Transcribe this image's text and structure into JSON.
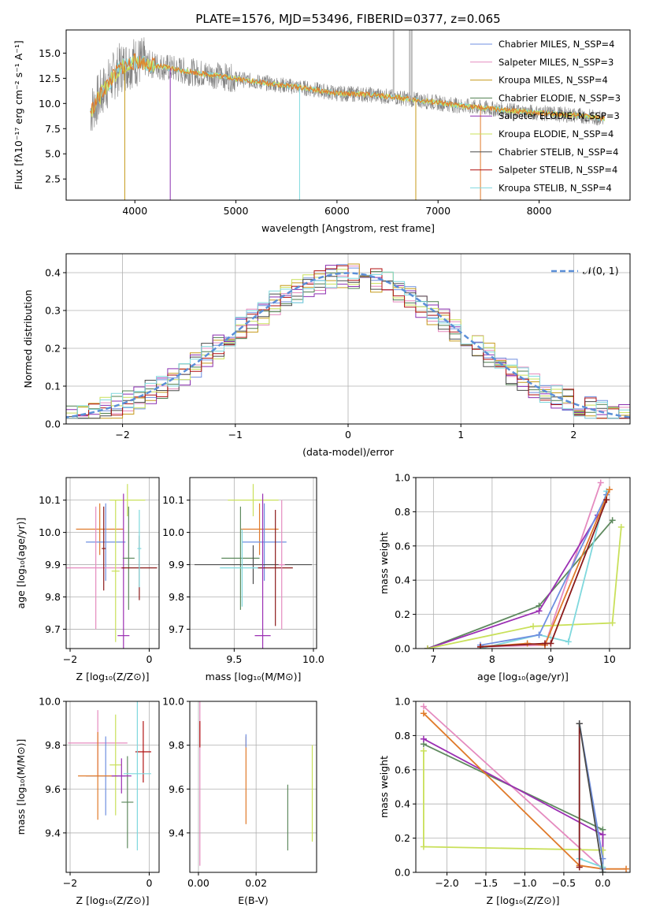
{
  "figure": {
    "title": "PLATE=1576, MJD=53496, FIBERID=0377, z=0.065"
  },
  "colors": {
    "series": [
      "#6f8fe0",
      "#e58bbf",
      "#c69a1b",
      "#4f7f4f",
      "#8a2fb0",
      "#c9e05a",
      "#4a4a4a",
      "#b01010",
      "#7fd8dd"
    ],
    "orange": "#e07a2a",
    "green": "#5f8a5f",
    "purple": "#9b2fb3",
    "pink": "#e58bbf",
    "teal": "#7fd8dd",
    "lime": "#c9e05a",
    "darkred": "#8b1a1a",
    "blue": "#6f8fe0",
    "grey": "#7f7f7f",
    "gauss": "#5b8fd8"
  },
  "chart_data": [
    {
      "type": "line",
      "xlabel": "wavelength [Angstrom, rest frame]",
      "ylabel": "Flux [fλ10⁻¹⁷ erg cm⁻² s⁻¹ A⁻¹]",
      "xlim": [
        3320,
        8900
      ],
      "ylim": [
        0.4,
        17.3
      ],
      "xticks": [
        "4000",
        "5000",
        "6000",
        "7000",
        "8000"
      ],
      "yticks": [
        "2.5",
        "5.0",
        "7.5",
        "10.0",
        "12.5",
        "15.0"
      ],
      "legend": [
        "Chabrier MILES, N_SSP=4",
        "Salpeter MILES, N_SSP=3",
        "Kroupa MILES, N_SSP=4",
        "Chabrier ELODIE, N_SSP=3",
        "Salpeter ELODIE, N_SSP=3",
        "Kroupa ELODIE, N_SSP=4",
        "Chabrier STELIB, N_SSP=4",
        "Salpeter STELIB, N_SSP=4",
        "Kroupa STELIB, N_SSP=4"
      ],
      "legend_position": "top-right",
      "continuum": {
        "x": [
          3560,
          3700,
          3850,
          4000,
          4200,
          4500,
          4800,
          5100,
          5400,
          5700,
          6000,
          6300,
          6600,
          6900,
          7200,
          7500,
          7800,
          8100,
          8400,
          8650
        ],
        "y": [
          9.2,
          11.5,
          13.5,
          14.2,
          13.8,
          13.2,
          12.8,
          12.3,
          11.9,
          11.5,
          11.0,
          10.9,
          10.6,
          10.2,
          9.8,
          9.5,
          9.2,
          9.0,
          8.8,
          8.5
        ]
      }
    },
    {
      "type": "line",
      "xlabel": "(data-model)/error",
      "ylabel": "Normed distribution",
      "xlim": [
        -2.5,
        2.5
      ],
      "ylim": [
        0,
        0.45
      ],
      "xticks": [
        "−2",
        "−1",
        "0",
        "1",
        "2"
      ],
      "yticks": [
        "0.0",
        "0.1",
        "0.2",
        "0.3",
        "0.4"
      ],
      "grid": true,
      "legend": [
        "𝒩(0, 1)"
      ],
      "legend_position": "top-right",
      "histogram_bin_width": 0.1,
      "gauss": {
        "mu": 0,
        "sigma": 1
      }
    },
    {
      "type": "scatter",
      "xlabel": "Z [log₁₀(Z/Z⊙)]",
      "ylabel": "age  [log₁₀(age/yr)]",
      "xlim": [
        -2.1,
        0.25
      ],
      "ylim": [
        9.64,
        10.17
      ],
      "xticks": [
        "−2",
        "0"
      ],
      "yticks": [
        "9.7",
        "9.8",
        "9.9",
        "10.0",
        "10.1"
      ],
      "crosses": [
        {
          "x": -1.25,
          "y": 10.01,
          "xerr": 0.6,
          "yerr": 0.08,
          "color": "#e07a2a"
        },
        {
          "x": -1.1,
          "y": 9.97,
          "xerr": 0.5,
          "yerr": 0.12,
          "color": "#6f8fe0"
        },
        {
          "x": -1.35,
          "y": 9.89,
          "xerr": 0.75,
          "yerr": 0.19,
          "color": "#e58bbf"
        },
        {
          "x": -0.85,
          "y": 9.88,
          "xerr": 0.1,
          "yerr": 0.22,
          "color": "#c9e05a"
        },
        {
          "x": -0.55,
          "y": 10.1,
          "xerr": 0.45,
          "yerr": 0.05,
          "color": "#c9e05a"
        },
        {
          "x": -0.65,
          "y": 9.68,
          "xerr": 0.15,
          "yerr": 0.44,
          "color": "#9b2fb3"
        },
        {
          "x": -0.52,
          "y": 9.92,
          "xerr": 0.15,
          "yerr": 0.16,
          "color": "#5f8a5f"
        },
        {
          "x": -0.25,
          "y": 9.89,
          "xerr": 0.45,
          "yerr": 0.1,
          "color": "#8b1a1a"
        },
        {
          "x": -0.25,
          "y": 9.95,
          "xerr": 0.05,
          "yerr": 0.12,
          "color": "#7fd8dd"
        },
        {
          "x": -1.15,
          "y": 9.95,
          "xerr": 0.05,
          "yerr": 0.13,
          "color": "#8b1a1a"
        }
      ]
    },
    {
      "type": "scatter",
      "xlabel": "mass [log₁₀(M/M⊙)]",
      "xlim": [
        9.22,
        10.02
      ],
      "ylim": [
        9.64,
        10.17
      ],
      "xticks": [
        "9.5",
        "10.0"
      ],
      "yticks": [
        "9.7",
        "9.8",
        "9.9",
        "10.0",
        "10.1"
      ],
      "crosses": [
        {
          "x": 9.62,
          "y": 10.1,
          "xerr": 0.16,
          "yerr": 0.05,
          "color": "#c9e05a"
        },
        {
          "x": 9.66,
          "y": 10.01,
          "xerr": 0.12,
          "yerr": 0.08,
          "color": "#e07a2a"
        },
        {
          "x": 9.69,
          "y": 9.97,
          "xerr": 0.14,
          "yerr": 0.12,
          "color": "#6f8fe0"
        },
        {
          "x": 9.54,
          "y": 9.92,
          "xerr": 0.12,
          "yerr": 0.16,
          "color": "#5f8a5f"
        },
        {
          "x": 9.62,
          "y": 9.9,
          "xerr": 0.37,
          "yerr": 0.06,
          "color": "#4a4a4a"
        },
        {
          "x": 9.55,
          "y": 9.89,
          "xerr": 0.14,
          "yerr": 0.12,
          "color": "#7fd8dd"
        },
        {
          "x": 9.76,
          "y": 9.89,
          "xerr": 0.11,
          "yerr": 0.18,
          "color": "#8b1a1a"
        },
        {
          "x": 9.68,
          "y": 9.68,
          "xerr": 0.05,
          "yerr": 0.44,
          "color": "#9b2fb3"
        },
        {
          "x": 9.8,
          "y": 9.9,
          "xerr": 0.02,
          "yerr": 0.2,
          "color": "#e58bbf"
        }
      ]
    },
    {
      "type": "line",
      "xlabel": "age  [log₁₀(age/yr)]",
      "ylabel": "mass weight",
      "xlim": [
        6.7,
        10.35
      ],
      "ylim": [
        0,
        1
      ],
      "xticks": [
        "7",
        "8",
        "9",
        "10"
      ],
      "yticks": [
        "0.0",
        "0.2",
        "0.4",
        "0.6",
        "0.8",
        "1.0"
      ],
      "grid": true,
      "series": [
        {
          "color": "#e58bbf",
          "x": [
            7.8,
            8.9,
            9.85
          ],
          "y": [
            0.01,
            0.02,
            0.97
          ]
        },
        {
          "color": "#5f8a5f",
          "x": [
            6.9,
            8.8,
            10.05
          ],
          "y": [
            0.0,
            0.25,
            0.75
          ]
        },
        {
          "color": "#9b2fb3",
          "x": [
            6.9,
            8.8,
            9.8
          ],
          "y": [
            0.0,
            0.22,
            0.78
          ]
        },
        {
          "color": "#c9e05a",
          "x": [
            6.9,
            8.7,
            10.05,
            10.2
          ],
          "y": [
            0.0,
            0.13,
            0.15,
            0.71
          ]
        },
        {
          "color": "#7fd8dd",
          "x": [
            7.8,
            8.8,
            9.3,
            9.95
          ],
          "y": [
            0.0,
            0.08,
            0.04,
            0.92
          ]
        },
        {
          "color": "#6f8fe0",
          "x": [
            7.8,
            8.8,
            9.95
          ],
          "y": [
            0.02,
            0.08,
            0.9
          ]
        },
        {
          "color": "#e07a2a",
          "x": [
            7.8,
            8.6,
            8.9,
            10.0
          ],
          "y": [
            0.01,
            0.03,
            0.02,
            0.93
          ]
        },
        {
          "color": "#8b1a1a",
          "x": [
            7.8,
            8.9,
            9.0,
            9.95
          ],
          "y": [
            0.01,
            0.03,
            0.03,
            0.87
          ]
        }
      ]
    },
    {
      "type": "scatter",
      "xlabel": "Z [log₁₀(Z/Z⊙)]",
      "ylabel": "mass [log₁₀(M/M⊙)]",
      "xlim": [
        -2.1,
        0.25
      ],
      "ylim": [
        9.22,
        10.0
      ],
      "xticks": [
        "−2",
        "0"
      ],
      "yticks": [
        "9.4",
        "9.6",
        "9.8",
        "10.0"
      ],
      "crosses": [
        {
          "x": -1.3,
          "y": 9.81,
          "xerr": 0.75,
          "yerr": 0.15,
          "color": "#e58bbf"
        },
        {
          "x": -1.1,
          "y": 9.66,
          "xerr": 0.5,
          "yerr": 0.18,
          "color": "#6f8fe0"
        },
        {
          "x": -1.3,
          "y": 9.66,
          "xerr": 0.5,
          "yerr": 0.2,
          "color": "#e07a2a"
        },
        {
          "x": -0.55,
          "y": 9.54,
          "xerr": 0.15,
          "yerr": 0.21,
          "color": "#5f8a5f"
        },
        {
          "x": -0.85,
          "y": 9.71,
          "xerr": 0.15,
          "yerr": 0.23,
          "color": "#c9e05a"
        },
        {
          "x": -0.15,
          "y": 9.77,
          "xerr": 0.2,
          "yerr": 0.14,
          "color": "#b01010"
        },
        {
          "x": -0.3,
          "y": 9.67,
          "xerr": 0.35,
          "yerr": 0.35,
          "color": "#7fd8dd"
        },
        {
          "x": -0.7,
          "y": 9.66,
          "xerr": 0.25,
          "yerr": 0.08,
          "color": "#9b2fb3"
        }
      ]
    },
    {
      "type": "scatter",
      "xlabel": "E(B-V)",
      "xlim": [
        -0.003,
        0.041
      ],
      "ylim": [
        9.22,
        10.0
      ],
      "xticks": [
        "0.00",
        "0.02"
      ],
      "yticks": [
        "9.4",
        "9.6",
        "9.8",
        "10.0"
      ],
      "crosses": [
        {
          "x": 0.0005,
          "y": 9.65,
          "xerr": 0.0,
          "yerr": 0.4,
          "color": "#e58bbf"
        },
        {
          "x": 0.0005,
          "y": 9.85,
          "xerr": 0.0,
          "yerr": 0.06,
          "color": "#b01010"
        },
        {
          "x": 0.0165,
          "y": 9.64,
          "xerr": 0.0,
          "yerr": 0.2,
          "color": "#e07a2a"
        },
        {
          "x": 0.0165,
          "y": 9.82,
          "xerr": 0.0,
          "yerr": 0.03,
          "color": "#6f8fe0"
        },
        {
          "x": 0.031,
          "y": 9.47,
          "xerr": 0.0,
          "yerr": 0.15,
          "color": "#5f8a5f"
        },
        {
          "x": 0.0395,
          "y": 9.58,
          "xerr": 0.0,
          "yerr": 0.22,
          "color": "#c9e05a"
        }
      ]
    },
    {
      "type": "line",
      "xlabel": "Z [log₁₀(Z/Z⊙)]",
      "ylabel": "mass weight",
      "xlim": [
        -2.4,
        0.35
      ],
      "ylim": [
        0,
        1
      ],
      "xticks": [
        "−2.0",
        "−1.5",
        "−1.0",
        "−0.5",
        "0.0"
      ],
      "yticks": [
        "0.0",
        "0.2",
        "0.4",
        "0.6",
        "0.8",
        "1.0"
      ],
      "grid": true,
      "series": [
        {
          "color": "#e58bbf",
          "x": [
            -2.3,
            0.0
          ],
          "y": [
            0.97,
            0.02
          ]
        },
        {
          "color": "#5f8a5f",
          "x": [
            -2.3,
            0.0,
            0.0
          ],
          "y": [
            0.75,
            0.25,
            0.0
          ]
        },
        {
          "color": "#9b2fb3",
          "x": [
            -2.3,
            0.0,
            0.0
          ],
          "y": [
            0.78,
            0.22,
            0.0
          ]
        },
        {
          "color": "#c9e05a",
          "x": [
            -2.3,
            -2.3,
            0.0,
            0.0
          ],
          "y": [
            0.71,
            0.15,
            0.13,
            0.0
          ]
        },
        {
          "color": "#e07a2a",
          "x": [
            -2.3,
            -0.3,
            0.0,
            0.3
          ],
          "y": [
            0.93,
            0.04,
            0.02,
            0.02
          ]
        },
        {
          "color": "#6f8fe0",
          "x": [
            -0.3,
            0.0,
            0.0
          ],
          "y": [
            0.87,
            0.08,
            0.02
          ]
        },
        {
          "color": "#7fd8dd",
          "x": [
            -0.3,
            -0.3,
            0.0,
            0.0
          ],
          "y": [
            0.87,
            0.08,
            0.03,
            0.0
          ]
        },
        {
          "color": "#8b1a1a",
          "x": [
            -0.3,
            -0.3
          ],
          "y": [
            0.87,
            0.03
          ]
        },
        {
          "color": "#4a4a4a",
          "x": [
            -0.3,
            0.0
          ],
          "y": [
            0.87,
            0.0
          ]
        }
      ]
    }
  ]
}
